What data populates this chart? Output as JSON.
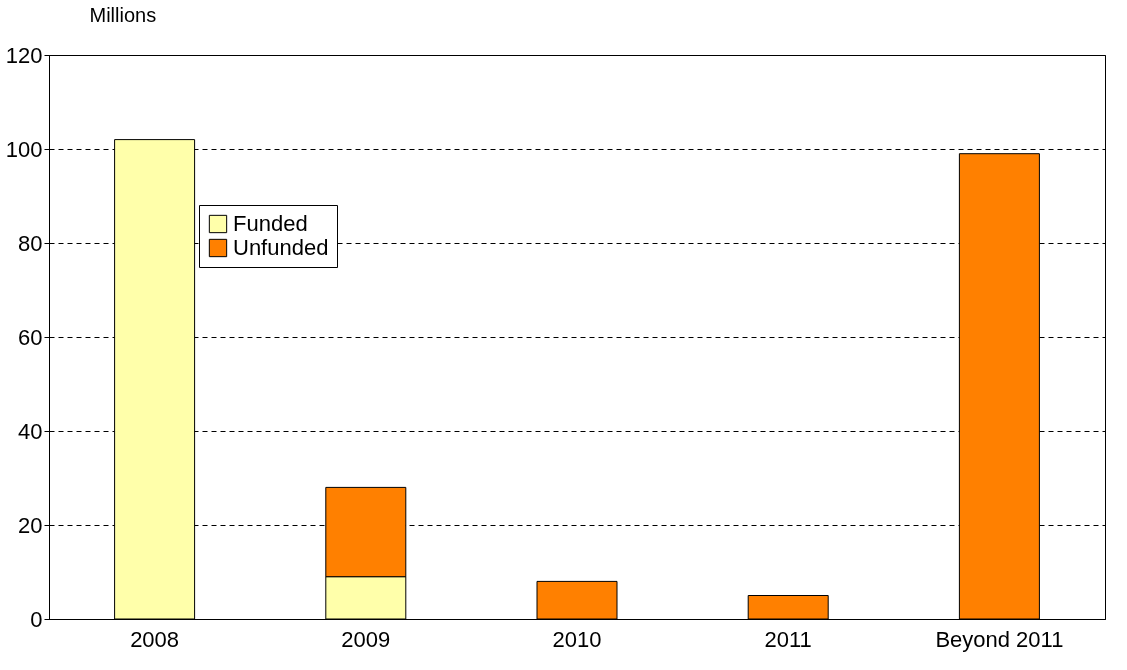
{
  "chart_data": {
    "type": "bar",
    "ylabel": "Millions",
    "categories": [
      "2008",
      "2009",
      "2010",
      "2011",
      "Beyond 2011"
    ],
    "series": [
      {
        "name": "Funded",
        "color": "#ffffaa",
        "values": [
          102,
          9,
          null,
          null,
          null
        ]
      },
      {
        "name": "Unfunded",
        "color": "#ff8000",
        "values": [
          null,
          19,
          8,
          5,
          99
        ]
      }
    ],
    "stacked": true,
    "ylim": [
      0,
      120
    ],
    "yticks": [
      0,
      20,
      40,
      60,
      80,
      100,
      120
    ],
    "grid": "y",
    "legend": "top left"
  }
}
